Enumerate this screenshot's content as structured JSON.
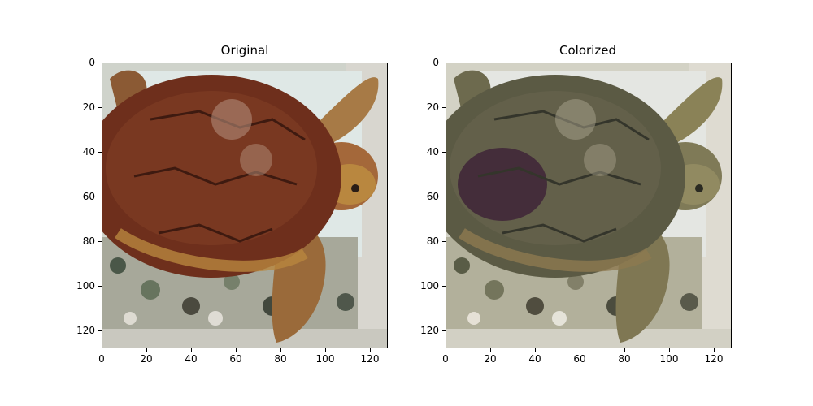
{
  "figure": {
    "panels": [
      {
        "title": "Original",
        "x_ticks": [
          "0",
          "20",
          "40",
          "60",
          "80",
          "100",
          "120"
        ],
        "y_ticks": [
          "0",
          "20",
          "40",
          "60",
          "80",
          "100",
          "120"
        ],
        "image_description": "loggerhead turtle on patterned cloth"
      },
      {
        "title": "Colorized",
        "x_ticks": [
          "0",
          "20",
          "40",
          "60",
          "80",
          "100",
          "120"
        ],
        "y_ticks": [
          "0",
          "20",
          "40",
          "60",
          "80",
          "100",
          "120"
        ],
        "image_description": "colorized loggerhead turtle on patterned cloth"
      }
    ],
    "axis_range": [
      0,
      128
    ],
    "colors": {
      "background": "#d9d9d2",
      "shell_original": "#6e2f1c",
      "shell_colorized": "#5b5a44",
      "skin_original": "#b8863f",
      "skin_colorized": "#8a8257"
    }
  }
}
